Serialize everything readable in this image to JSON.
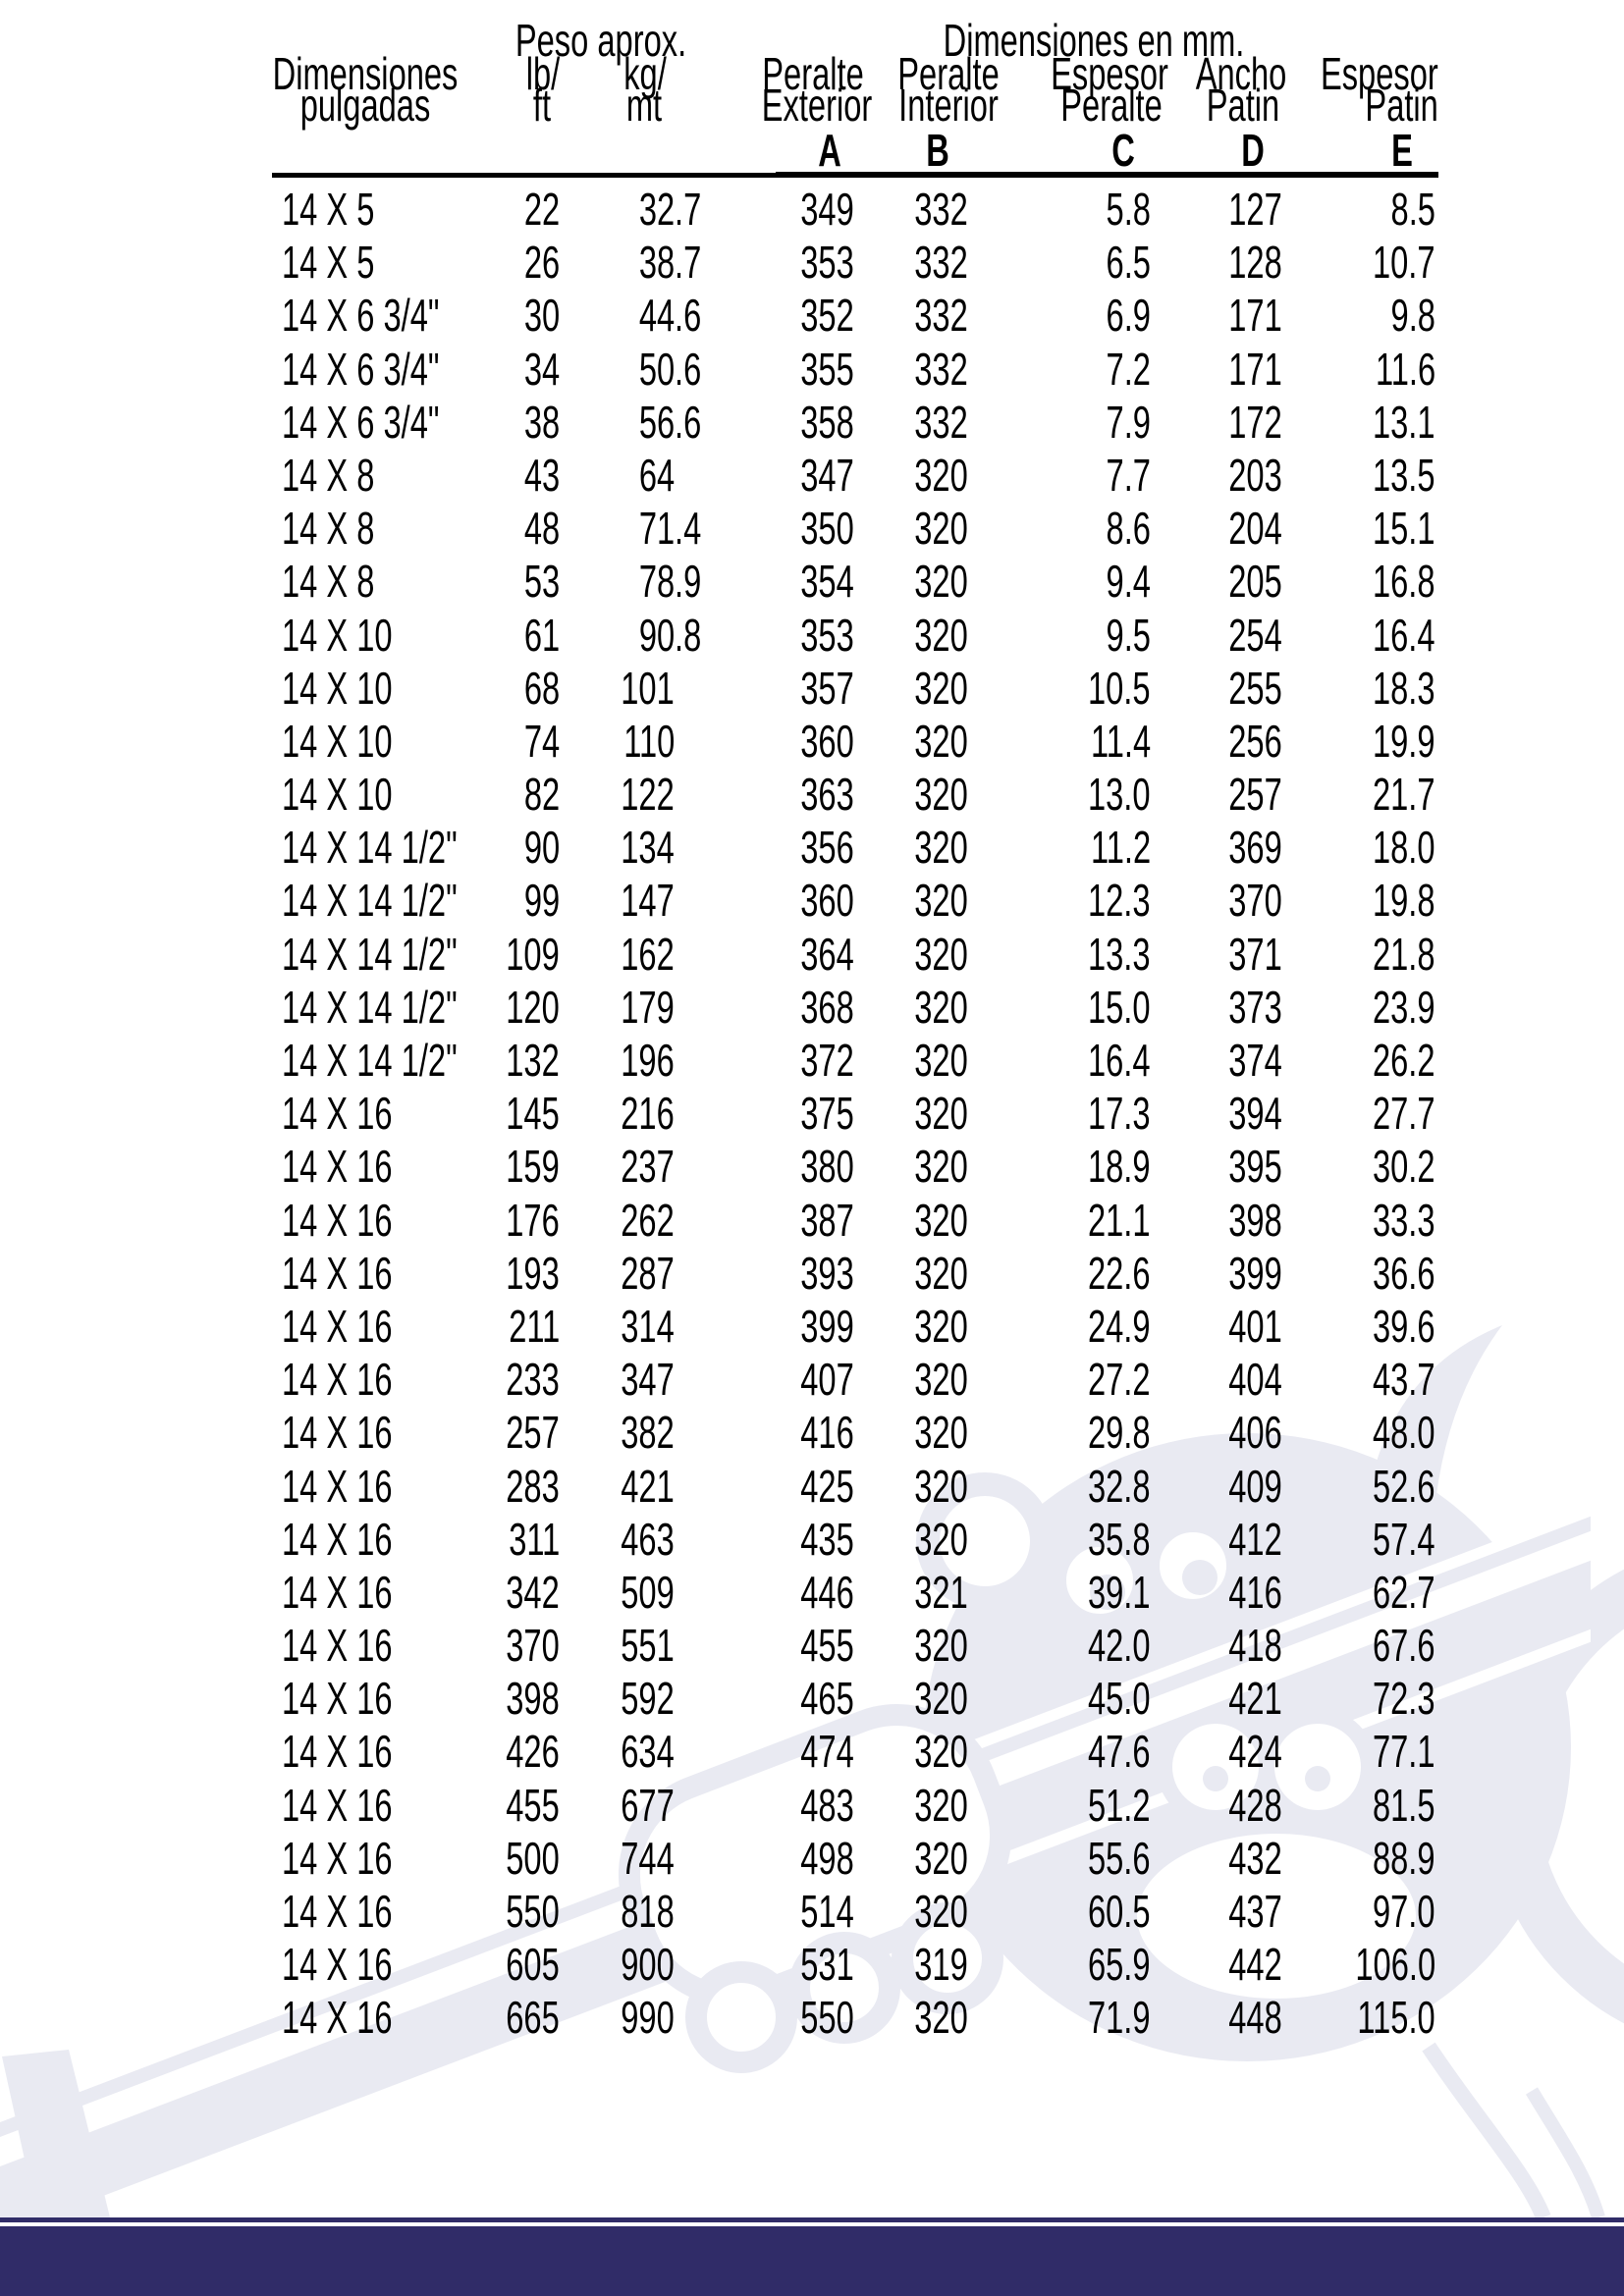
{
  "page": {
    "background": "#ffffff",
    "navy": "#302c68",
    "watermark_color": "#e9eaf2"
  },
  "table": {
    "group_headers": {
      "peso_aprox": "Peso aprox.",
      "dimensiones_mm": "Dimensiones en mm."
    },
    "columns": [
      {
        "id": "dimensiones",
        "line1": "Dimensiones",
        "line2": "pulgadas",
        "letter": ""
      },
      {
        "id": "lb-ft",
        "line1": "lb/",
        "line2": "ft",
        "letter": ""
      },
      {
        "id": "kg-mt",
        "line1": "kg/",
        "line2": "mt",
        "letter": ""
      },
      {
        "id": "peralte-exterior",
        "line1": "Peralte",
        "line2": "Exterior",
        "letter": "A"
      },
      {
        "id": "peralte-interior",
        "line1": "Peralte",
        "line2": "Interior",
        "letter": "B"
      },
      {
        "id": "espesor-peralte",
        "line1": "Espesor",
        "line2": "Peralte",
        "letter": "C"
      },
      {
        "id": "ancho-patin",
        "line1": "Ancho",
        "line2": "Patin",
        "letter": "D"
      },
      {
        "id": "espesor-patin",
        "line1": "Espesor",
        "line2": "Patin",
        "letter": "E"
      }
    ],
    "rows": [
      [
        "14 X 5",
        "22",
        "32.7",
        "349",
        "332",
        "5.8",
        "127",
        "8.5"
      ],
      [
        "14 X 5",
        "26",
        "38.7",
        "353",
        "332",
        "6.5",
        "128",
        "10.7"
      ],
      [
        "14 X 6 3/4\"",
        "30",
        "44.6",
        "352",
        "332",
        "6.9",
        "171",
        "9.8"
      ],
      [
        "14 X 6 3/4\"",
        "34",
        "50.6",
        "355",
        "332",
        "7.2",
        "171",
        "11.6"
      ],
      [
        "14 X 6 3/4\"",
        "38",
        "56.6",
        "358",
        "332",
        "7.9",
        "172",
        "13.1"
      ],
      [
        "14 X 8",
        "43",
        "64",
        "347",
        "320",
        "7.7",
        "203",
        "13.5"
      ],
      [
        "14 X 8",
        "48",
        "71.4",
        "350",
        "320",
        "8.6",
        "204",
        "15.1"
      ],
      [
        "14 X 8",
        "53",
        "78.9",
        "354",
        "320",
        "9.4",
        "205",
        "16.8"
      ],
      [
        "14 X 10",
        "61",
        "90.8",
        "353",
        "320",
        "9.5",
        "254",
        "16.4"
      ],
      [
        "14 X 10",
        "68",
        "101",
        "357",
        "320",
        "10.5",
        "255",
        "18.3"
      ],
      [
        "14 X 10",
        "74",
        "110",
        "360",
        "320",
        "11.4",
        "256",
        "19.9"
      ],
      [
        "14 X 10",
        "82",
        "122",
        "363",
        "320",
        "13.0",
        "257",
        "21.7"
      ],
      [
        "14 X 14 1/2\"",
        "90",
        "134",
        "356",
        "320",
        "11.2",
        "369",
        "18.0"
      ],
      [
        "14 X 14 1/2\"",
        "99",
        "147",
        "360",
        "320",
        "12.3",
        "370",
        "19.8"
      ],
      [
        "14 X 14 1/2\"",
        "109",
        "162",
        "364",
        "320",
        "13.3",
        "371",
        "21.8"
      ],
      [
        "14 X 14 1/2\"",
        "120",
        "179",
        "368",
        "320",
        "15.0",
        "373",
        "23.9"
      ],
      [
        "14 X 14 1/2\"",
        "132",
        "196",
        "372",
        "320",
        "16.4",
        "374",
        "26.2"
      ],
      [
        "14 X 16",
        "145",
        "216",
        "375",
        "320",
        "17.3",
        "394",
        "27.7"
      ],
      [
        "14 X 16",
        "159",
        "237",
        "380",
        "320",
        "18.9",
        "395",
        "30.2"
      ],
      [
        "14 X 16",
        "176",
        "262",
        "387",
        "320",
        "21.1",
        "398",
        "33.3"
      ],
      [
        "14 X 16",
        "193",
        "287",
        "393",
        "320",
        "22.6",
        "399",
        "36.6"
      ],
      [
        "14 X 16",
        "211",
        "314",
        "399",
        "320",
        "24.9",
        "401",
        "39.6"
      ],
      [
        "14 X 16",
        "233",
        "347",
        "407",
        "320",
        "27.2",
        "404",
        "43.7"
      ],
      [
        "14 X 16",
        "257",
        "382",
        "416",
        "320",
        "29.8",
        "406",
        "48.0"
      ],
      [
        "14 X 16",
        "283",
        "421",
        "425",
        "320",
        "32.8",
        "409",
        "52.6"
      ],
      [
        "14 X 16",
        "311",
        "463",
        "435",
        "320",
        "35.8",
        "412",
        "57.4"
      ],
      [
        "14 X 16",
        "342",
        "509",
        "446",
        "321",
        "39.1",
        "416",
        "62.7"
      ],
      [
        "14 X 16",
        "370",
        "551",
        "455",
        "320",
        "42.0",
        "418",
        "67.6"
      ],
      [
        "14 X 16",
        "398",
        "592",
        "465",
        "320",
        "45.0",
        "421",
        "72.3"
      ],
      [
        "14 X 16",
        "426",
        "634",
        "474",
        "320",
        "47.6",
        "424",
        "77.1"
      ],
      [
        "14 X 16",
        "455",
        "677",
        "483",
        "320",
        "51.2",
        "428",
        "81.5"
      ],
      [
        "14 X 16",
        "500",
        "744",
        "498",
        "320",
        "55.6",
        "432",
        "88.9"
      ],
      [
        "14 X 16",
        "550",
        "818",
        "514",
        "320",
        "60.5",
        "437",
        "97.0"
      ],
      [
        "14 X 16",
        "605",
        "900",
        "531",
        "319",
        "65.9",
        "442",
        "106.0"
      ],
      [
        "14 X 16",
        "665",
        "990",
        "550",
        "320",
        "71.9",
        "448",
        "115.0"
      ]
    ]
  }
}
